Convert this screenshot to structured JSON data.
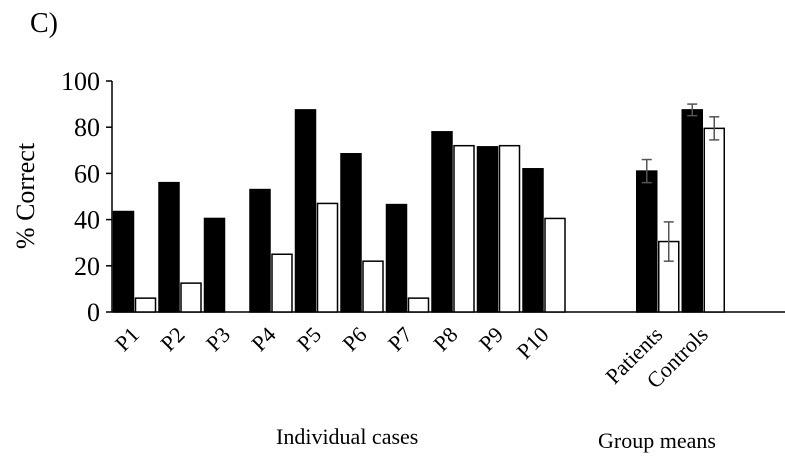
{
  "panel_label": "C)",
  "chart_data": {
    "type": "bar",
    "ylabel": "% Correct",
    "ylim": [
      0,
      100
    ],
    "yticks": [
      0,
      20,
      40,
      60,
      80,
      100
    ],
    "grid": false,
    "categories": [
      "P1",
      "P2",
      "P3",
      "P4",
      "P5",
      "P6",
      "P7",
      "P8",
      "P9",
      "P10",
      "Patients",
      "Controls"
    ],
    "series": [
      {
        "color": "#000000",
        "values": [
          43.5,
          56,
          40.5,
          53,
          87.5,
          68.5,
          46.5,
          78,
          71.5,
          62,
          61,
          87.5
        ],
        "errors": [
          null,
          null,
          null,
          null,
          null,
          null,
          null,
          null,
          null,
          null,
          5,
          2.5
        ]
      },
      {
        "color": "#ffffff",
        "values": [
          6,
          12.5,
          0,
          25,
          47,
          22,
          6,
          72,
          72,
          40.5,
          30.5,
          79.5
        ],
        "errors": [
          null,
          null,
          null,
          null,
          null,
          null,
          null,
          null,
          null,
          null,
          8.5,
          5
        ]
      }
    ],
    "group_labels": [
      "Individual cases",
      "Group means"
    ]
  }
}
